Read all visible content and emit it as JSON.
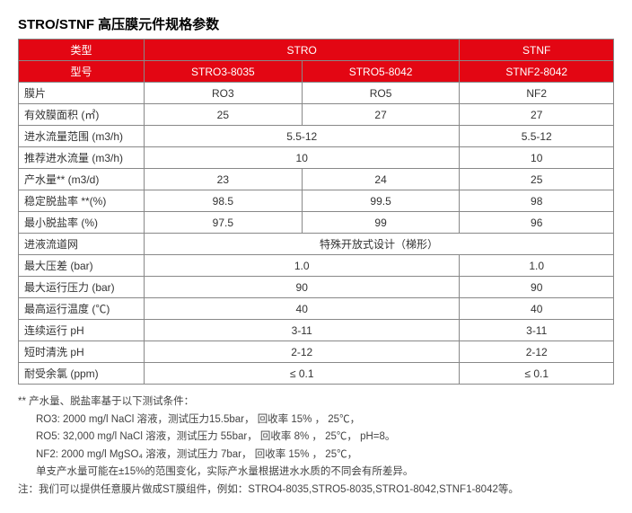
{
  "title": "STRO/STNF 高压膜元件规格参数",
  "headers": {
    "row1": [
      "类型",
      "STRO",
      "STNF"
    ],
    "row2": [
      "型号",
      "STRO3-8035",
      "STRO5-8042",
      "STNF2-8042"
    ]
  },
  "rows": [
    {
      "label": "膜片",
      "cells": [
        "RO3",
        "RO5",
        "NF2"
      ]
    },
    {
      "label": "有效膜面积 (㎡)",
      "cells": [
        "25",
        "27",
        "27"
      ]
    },
    {
      "label": "进水流量范围 (m3/h)",
      "merged": [
        {
          "span": 2,
          "text": "5.5-12"
        },
        {
          "span": 1,
          "text": "5.5-12"
        }
      ]
    },
    {
      "label": "推荐进水流量 (m3/h)",
      "merged": [
        {
          "span": 2,
          "text": "10"
        },
        {
          "span": 1,
          "text": "10"
        }
      ]
    },
    {
      "label": "产水量** (m3/d)",
      "cells": [
        "23",
        "24",
        "25"
      ]
    },
    {
      "label": "稳定脱盐率 **(%)",
      "cells": [
        "98.5",
        "99.5",
        "98"
      ]
    },
    {
      "label": "最小脱盐率 (%)",
      "cells": [
        "97.5",
        "99",
        "96"
      ]
    },
    {
      "label": "进液流道网",
      "merged": [
        {
          "span": 3,
          "text": "特殊开放式设计（梯形）"
        }
      ]
    },
    {
      "label": "最大压差 (bar)",
      "merged": [
        {
          "span": 2,
          "text": "1.0"
        },
        {
          "span": 1,
          "text": "1.0"
        }
      ]
    },
    {
      "label": "最大运行压力 (bar)",
      "merged": [
        {
          "span": 2,
          "text": "90"
        },
        {
          "span": 1,
          "text": "90"
        }
      ]
    },
    {
      "label": "最高运行温度 (℃)",
      "merged": [
        {
          "span": 2,
          "text": "40"
        },
        {
          "span": 1,
          "text": "40"
        }
      ]
    },
    {
      "label": "连续运行 pH",
      "merged": [
        {
          "span": 2,
          "text": "3-11"
        },
        {
          "span": 1,
          "text": "3-11"
        }
      ]
    },
    {
      "label": "短时清洗 pH",
      "merged": [
        {
          "span": 2,
          "text": "2-12"
        },
        {
          "span": 1,
          "text": "2-12"
        }
      ]
    },
    {
      "label": "耐受余氯 (ppm)",
      "merged": [
        {
          "span": 2,
          "text": "≤ 0.1"
        },
        {
          "span": 1,
          "text": "≤ 0.1"
        }
      ]
    }
  ],
  "notes": [
    {
      "class": "line",
      "text": "**  产水量、脱盐率基于以下测试条件："
    },
    {
      "class": "indent",
      "text": "RO3: 2000 mg/l NaCl 溶液，测试压力15.5bar， 回收率 15% ， 25℃，"
    },
    {
      "class": "indent",
      "text": "RO5: 32,000 mg/l NaCl 溶液，测试压力 55bar， 回收率 8% ， 25℃， pH=8。"
    },
    {
      "class": "indent",
      "text": "NF2: 2000 mg/l MgSO₄ 溶液，测试压力 7bar， 回收率 15% ， 25℃，"
    },
    {
      "class": "indent",
      "text": "单支产水量可能在±15%的范围变化，实际产水量根据进水水质的不同会有所差异。"
    },
    {
      "class": "line",
      "text": "注：我们可以提供任意膜片做成ST膜组件，例如：STRO4-8035,STRO5-8035,STRO1-8042,STNF1-8042等。"
    }
  ]
}
